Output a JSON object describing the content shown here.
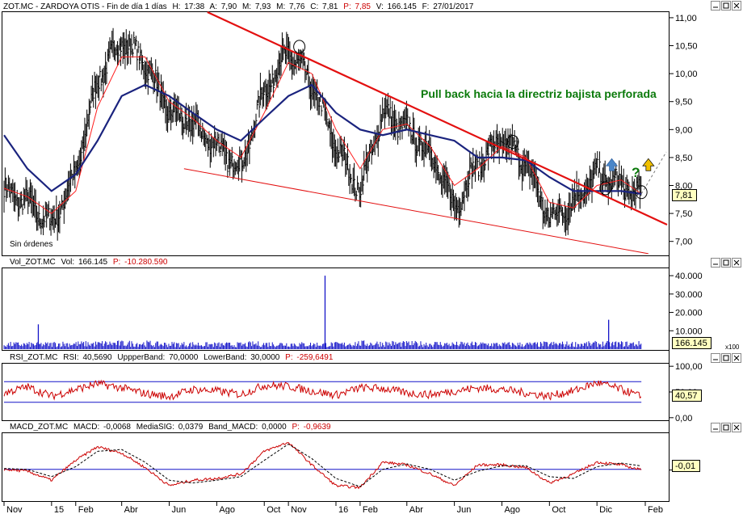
{
  "colors": {
    "background": "#ffffff",
    "frame": "#000000",
    "header_text": "#000000",
    "header_highlight": "#cc0000",
    "price_bars": "#000000",
    "ma_fast": "#ff2020",
    "ma_thin": "#9a9a9a",
    "ma_slow": "#1a237e",
    "trendline": "#e31010",
    "support_line": "#e31010",
    "annotation_text": "#0b7a0b",
    "volume_bars": "#1414c8",
    "rsi_line": "#cc0000",
    "band_lines": "#1414c8",
    "macd_line": "#cc0000",
    "signal_line": "#000000",
    "value_box": "#ffffc0",
    "arrow_up": "#4a86c8",
    "arrow_yellow": "#f0c000",
    "question_mark": "#0b7a0b"
  },
  "price_panel": {
    "header": {
      "symbol": "ZOT.MC - ZARDOYA OTIS - Fin de día 1 días",
      "high_label": "H:",
      "high": "17:38",
      "a_label": "A:",
      "a": "7,90",
      "m_label": "M:",
      "m": "7,93",
      "low_label": "M:",
      "low": "7,76",
      "c_label": "C:",
      "c": "7,81",
      "p_label": "P:",
      "p": "7,85",
      "v_label": "V:",
      "v": "166.145",
      "f_label": "F:",
      "f": "27/01/2017"
    },
    "last_value": "7,81",
    "annotation": "Pull back hacia la directriz bajista perforada",
    "sin_ordenes": "Sin órdenes",
    "question": "?"
  },
  "volume_panel": {
    "header": {
      "name": "Vol_ZOT.MC",
      "vol_label": "Vol:",
      "vol": "166.145",
      "p_label": "P:",
      "p": "-10.280.590"
    },
    "last_value": "166.145",
    "multiplier": "x100"
  },
  "rsi_panel": {
    "header": {
      "name": "RSI_ZOT.MC",
      "rsi_label": "RSI:",
      "rsi": "40,5690",
      "upper_label": "UppperBand:",
      "upper": "70,0000",
      "lower_label": "LowerBand:",
      "lower": "30,0000",
      "p_label": "P:",
      "p": "-259,6491"
    },
    "last_value": "40,57"
  },
  "macd_panel": {
    "header": {
      "name": "MACD_ZOT.MC",
      "macd_label": "MACD:",
      "macd": "-0,0068",
      "sig_label": "MediaSIG:",
      "sig": "0,0379",
      "band_label": "Band_MACD:",
      "band": "0,0000",
      "p_label": "P:",
      "p": "-0,9639"
    },
    "last_value": "-0,01"
  },
  "chart_data": [
    {
      "type": "line",
      "title": "ZOT.MC - ZARDOYA OTIS - Fin de día 1 días",
      "x_ticks": [
        "Nov",
        "15",
        "Feb",
        "Abr",
        "Jun",
        "Ago",
        "Oct",
        "Nov",
        "16",
        "Feb",
        "Abr",
        "Jun",
        "Ago",
        "Oct",
        "Dic",
        "Feb"
      ],
      "y_ticks": [
        "11,00",
        "10,50",
        "10,00",
        "9,50",
        "9,00",
        "8,50",
        "8,00",
        "7,50",
        "7,00"
      ],
      "ylim": [
        6.75,
        11.1
      ],
      "x": [
        "2014-11-01",
        "2014-12-01",
        "2015-01-01",
        "2015-02-01",
        "2015-03-01",
        "2015-04-01",
        "2015-05-01",
        "2015-06-01",
        "2015-07-01",
        "2015-08-01",
        "2015-09-01",
        "2015-10-01",
        "2015-11-01",
        "2015-12-01",
        "2016-01-01",
        "2016-02-01",
        "2016-03-01",
        "2016-04-01",
        "2016-05-01",
        "2016-06-01",
        "2016-07-01",
        "2016-08-01",
        "2016-09-01",
        "2016-10-01",
        "2016-11-01",
        "2016-12-01",
        "2017-01-01",
        "2017-01-27"
      ],
      "series": [
        {
          "values": [
            7.9,
            7.7,
            7.3,
            8.2,
            9.9,
            10.6,
            10.2,
            9.3,
            9.1,
            8.7,
            8.3,
            9.7,
            10.4,
            9.8,
            8.7,
            7.9,
            9.3,
            9.0,
            8.6,
            7.6,
            8.4,
            8.8,
            8.4,
            7.4,
            7.7,
            8.2,
            8.0,
            7.81
          ]
        },
        {
          "values": [
            7.95,
            7.8,
            7.5,
            7.9,
            9.4,
            10.3,
            10.3,
            9.5,
            9.2,
            8.8,
            8.5,
            9.3,
            10.2,
            10.0,
            9.0,
            8.3,
            9.0,
            9.1,
            8.7,
            8.0,
            8.3,
            8.7,
            8.5,
            7.7,
            7.6,
            8.0,
            8.1,
            7.85
          ]
        },
        {
          "values": [
            8.9,
            8.3,
            7.9,
            8.2,
            8.8,
            9.6,
            9.8,
            9.6,
            9.3,
            9.0,
            8.8,
            9.2,
            9.6,
            9.8,
            9.3,
            9.0,
            8.9,
            9.0,
            8.9,
            8.8,
            8.5,
            8.5,
            8.45,
            8.15,
            7.9,
            7.9,
            7.9,
            7.85
          ]
        }
      ],
      "annotations": [
        "Pull back hacia la directriz bajista perforada",
        "Sin órdenes"
      ]
    },
    {
      "type": "bar",
      "y_ticks": [
        "40.000",
        "30.000",
        "20.000",
        "10.000"
      ],
      "ylim": [
        0,
        44000
      ],
      "x_sample_months": [
        "Nov",
        "Feb",
        "Abr",
        "Jun",
        "Ago",
        "Oct",
        "Dic",
        "Feb",
        "Abr",
        "Jun",
        "Ago",
        "Oct",
        "Dic"
      ],
      "typical_values": [
        2500,
        2800,
        3000,
        2600,
        2400,
        2700,
        2500,
        3000,
        2800,
        2600,
        2500,
        2700,
        2800
      ],
      "spikes": [
        {
          "x": "2014-12-15",
          "value": 13500
        },
        {
          "x": "2015-12-18",
          "value": 40000
        },
        {
          "x": "2016-12-16",
          "value": 16000
        }
      ]
    },
    {
      "type": "line",
      "y_ticks": [
        "100,00",
        "50,00",
        "0,00"
      ],
      "ylim": [
        -5,
        105
      ],
      "series": [
        {
          "values": [
            48,
            60,
            42,
            55,
            66,
            58,
            47,
            41,
            55,
            52,
            45,
            63,
            61,
            52,
            44,
            58,
            57,
            48,
            45,
            52,
            58,
            55,
            48,
            42,
            52,
            68,
            55,
            40.57
          ]
        }
      ],
      "bands": {
        "upper": 70,
        "lower": 30
      }
    },
    {
      "type": "line",
      "y_ticks": [
        "-0,01"
      ],
      "ylim": [
        -0.35,
        0.4
      ],
      "series": [
        {
          "values": [
            0.0,
            -0.02,
            -0.12,
            0.1,
            0.25,
            0.18,
            0.02,
            -0.18,
            -0.12,
            -0.1,
            -0.05,
            0.2,
            0.3,
            0.05,
            -0.18,
            -0.2,
            0.08,
            0.05,
            -0.05,
            -0.18,
            0.05,
            0.05,
            0.02,
            -0.15,
            -0.05,
            0.08,
            0.05,
            -0.0068
          ]
        },
        {
          "values": [
            0.01,
            0.0,
            -0.08,
            0.03,
            0.2,
            0.22,
            0.08,
            -0.12,
            -0.15,
            -0.12,
            -0.08,
            0.1,
            0.28,
            0.12,
            -0.1,
            -0.19,
            0.0,
            0.06,
            0.0,
            -0.12,
            -0.02,
            0.04,
            0.04,
            -0.08,
            -0.1,
            0.03,
            0.07,
            0.0379
          ]
        }
      ],
      "zero_line": 0
    }
  ]
}
